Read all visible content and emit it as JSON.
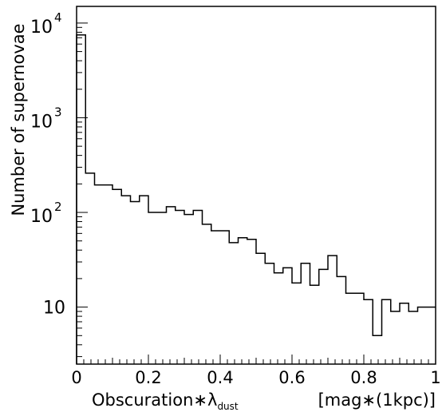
{
  "chart_data": {
    "type": "histogram",
    "title": "",
    "ylabel": "Number of supernovae",
    "xlabel": {
      "prefix": "Obscuration",
      "operator": "∗",
      "symbol": "λ",
      "subscript": "dust",
      "unit": "[mag∗(1kpc)]"
    },
    "xlim": [
      0,
      1
    ],
    "ylim": [
      2.5,
      15000
    ],
    "yscale": "log",
    "grid": false,
    "bin_width": 0.025,
    "x_ticks": [
      {
        "value": 0,
        "label": "0"
      },
      {
        "value": 0.2,
        "label": "0.2"
      },
      {
        "value": 0.4,
        "label": "0.4"
      },
      {
        "value": 0.6,
        "label": "0.6"
      },
      {
        "value": 0.8,
        "label": "0.8"
      },
      {
        "value": 1,
        "label": "1"
      }
    ],
    "y_ticks": [
      {
        "value": 10,
        "base": "10",
        "exp": ""
      },
      {
        "value": 100,
        "base": "10",
        "exp": "2"
      },
      {
        "value": 1000,
        "base": "10",
        "exp": "3"
      },
      {
        "value": 10000,
        "base": "10",
        "exp": "4"
      }
    ],
    "bins": [
      {
        "x0": 0.0,
        "x1": 0.025,
        "count": 7500
      },
      {
        "x0": 0.025,
        "x1": 0.05,
        "count": 260
      },
      {
        "x0": 0.05,
        "x1": 0.075,
        "count": 195
      },
      {
        "x0": 0.075,
        "x1": 0.1,
        "count": 195
      },
      {
        "x0": 0.1,
        "x1": 0.125,
        "count": 175
      },
      {
        "x0": 0.125,
        "x1": 0.15,
        "count": 150
      },
      {
        "x0": 0.15,
        "x1": 0.175,
        "count": 130
      },
      {
        "x0": 0.175,
        "x1": 0.2,
        "count": 150
      },
      {
        "x0": 0.2,
        "x1": 0.225,
        "count": 100
      },
      {
        "x0": 0.225,
        "x1": 0.25,
        "count": 100
      },
      {
        "x0": 0.25,
        "x1": 0.275,
        "count": 115
      },
      {
        "x0": 0.275,
        "x1": 0.3,
        "count": 105
      },
      {
        "x0": 0.3,
        "x1": 0.325,
        "count": 95
      },
      {
        "x0": 0.325,
        "x1": 0.35,
        "count": 105
      },
      {
        "x0": 0.35,
        "x1": 0.375,
        "count": 75
      },
      {
        "x0": 0.375,
        "x1": 0.4,
        "count": 64
      },
      {
        "x0": 0.4,
        "x1": 0.425,
        "count": 64
      },
      {
        "x0": 0.425,
        "x1": 0.45,
        "count": 48
      },
      {
        "x0": 0.45,
        "x1": 0.475,
        "count": 54
      },
      {
        "x0": 0.475,
        "x1": 0.5,
        "count": 52
      },
      {
        "x0": 0.5,
        "x1": 0.525,
        "count": 37
      },
      {
        "x0": 0.525,
        "x1": 0.55,
        "count": 29
      },
      {
        "x0": 0.55,
        "x1": 0.575,
        "count": 23
      },
      {
        "x0": 0.575,
        "x1": 0.6,
        "count": 26
      },
      {
        "x0": 0.6,
        "x1": 0.625,
        "count": 18
      },
      {
        "x0": 0.625,
        "x1": 0.65,
        "count": 29
      },
      {
        "x0": 0.65,
        "x1": 0.675,
        "count": 17
      },
      {
        "x0": 0.675,
        "x1": 0.7,
        "count": 25
      },
      {
        "x0": 0.7,
        "x1": 0.725,
        "count": 35
      },
      {
        "x0": 0.725,
        "x1": 0.75,
        "count": 21
      },
      {
        "x0": 0.75,
        "x1": 0.775,
        "count": 14
      },
      {
        "x0": 0.775,
        "x1": 0.8,
        "count": 14
      },
      {
        "x0": 0.8,
        "x1": 0.825,
        "count": 12
      },
      {
        "x0": 0.825,
        "x1": 0.85,
        "count": 5
      },
      {
        "x0": 0.85,
        "x1": 0.875,
        "count": 12
      },
      {
        "x0": 0.875,
        "x1": 0.9,
        "count": 9
      },
      {
        "x0": 0.9,
        "x1": 0.925,
        "count": 11
      },
      {
        "x0": 0.925,
        "x1": 0.95,
        "count": 9
      },
      {
        "x0": 0.95,
        "x1": 0.975,
        "count": 10
      },
      {
        "x0": 0.975,
        "x1": 1.0,
        "count": 10
      }
    ]
  }
}
